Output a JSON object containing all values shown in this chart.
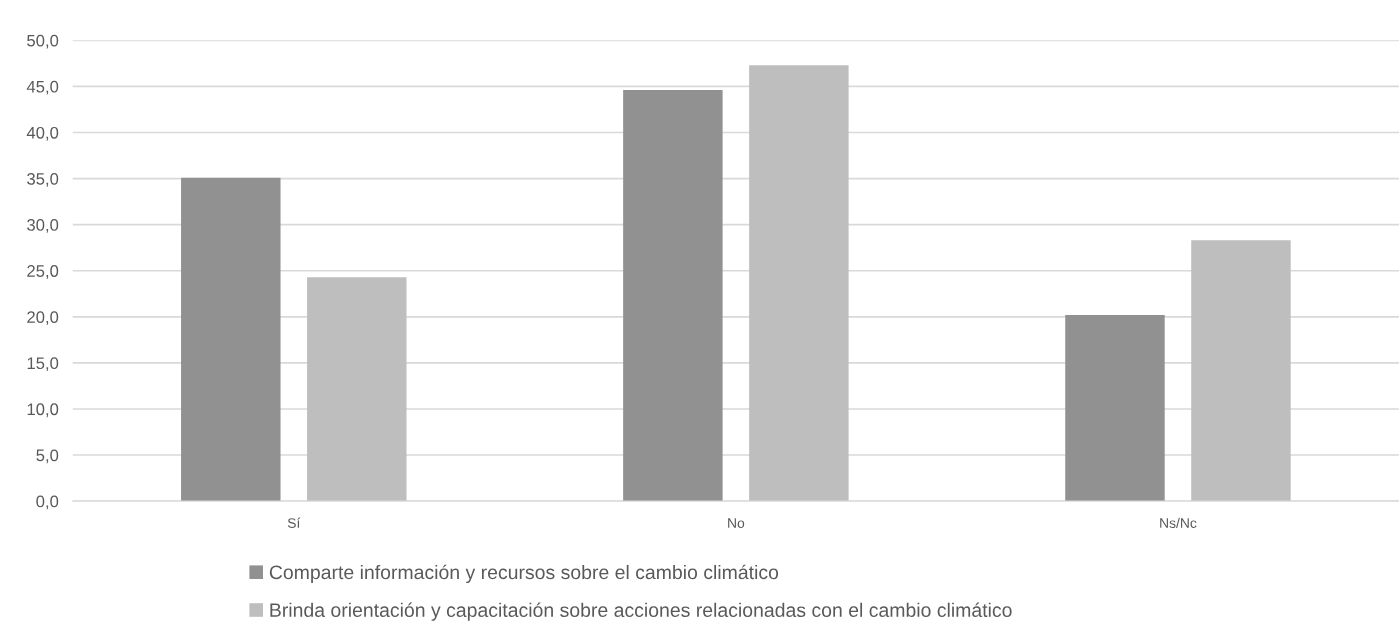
{
  "chart_data": {
    "type": "bar",
    "categories": [
      "Sí",
      "No",
      "Ns/Nc"
    ],
    "series": [
      {
        "name": "Comparte información y recursos sobre el cambio climático",
        "color": "#919191",
        "values": [
          35.1,
          44.6,
          20.2
        ]
      },
      {
        "name": "Brinda orientación y capacitación sobre acciones relacionadas con el cambio climático",
        "color": "#bebebe",
        "values": [
          24.3,
          47.3,
          28.3
        ]
      }
    ],
    "ylim": [
      0,
      50
    ],
    "yticks": [
      {
        "value": 0,
        "label": "0,0"
      },
      {
        "value": 5,
        "label": "5,0"
      },
      {
        "value": 10,
        "label": "10,0"
      },
      {
        "value": 15,
        "label": "15,0"
      },
      {
        "value": 20,
        "label": "20,0"
      },
      {
        "value": 25,
        "label": "25,0"
      },
      {
        "value": 30,
        "label": "30,0"
      },
      {
        "value": 35,
        "label": "35,0"
      },
      {
        "value": 40,
        "label": "40,0"
      },
      {
        "value": 45,
        "label": "45,0"
      },
      {
        "value": 50,
        "label": "50,0"
      }
    ],
    "grid": "y",
    "legend": "bottom"
  }
}
